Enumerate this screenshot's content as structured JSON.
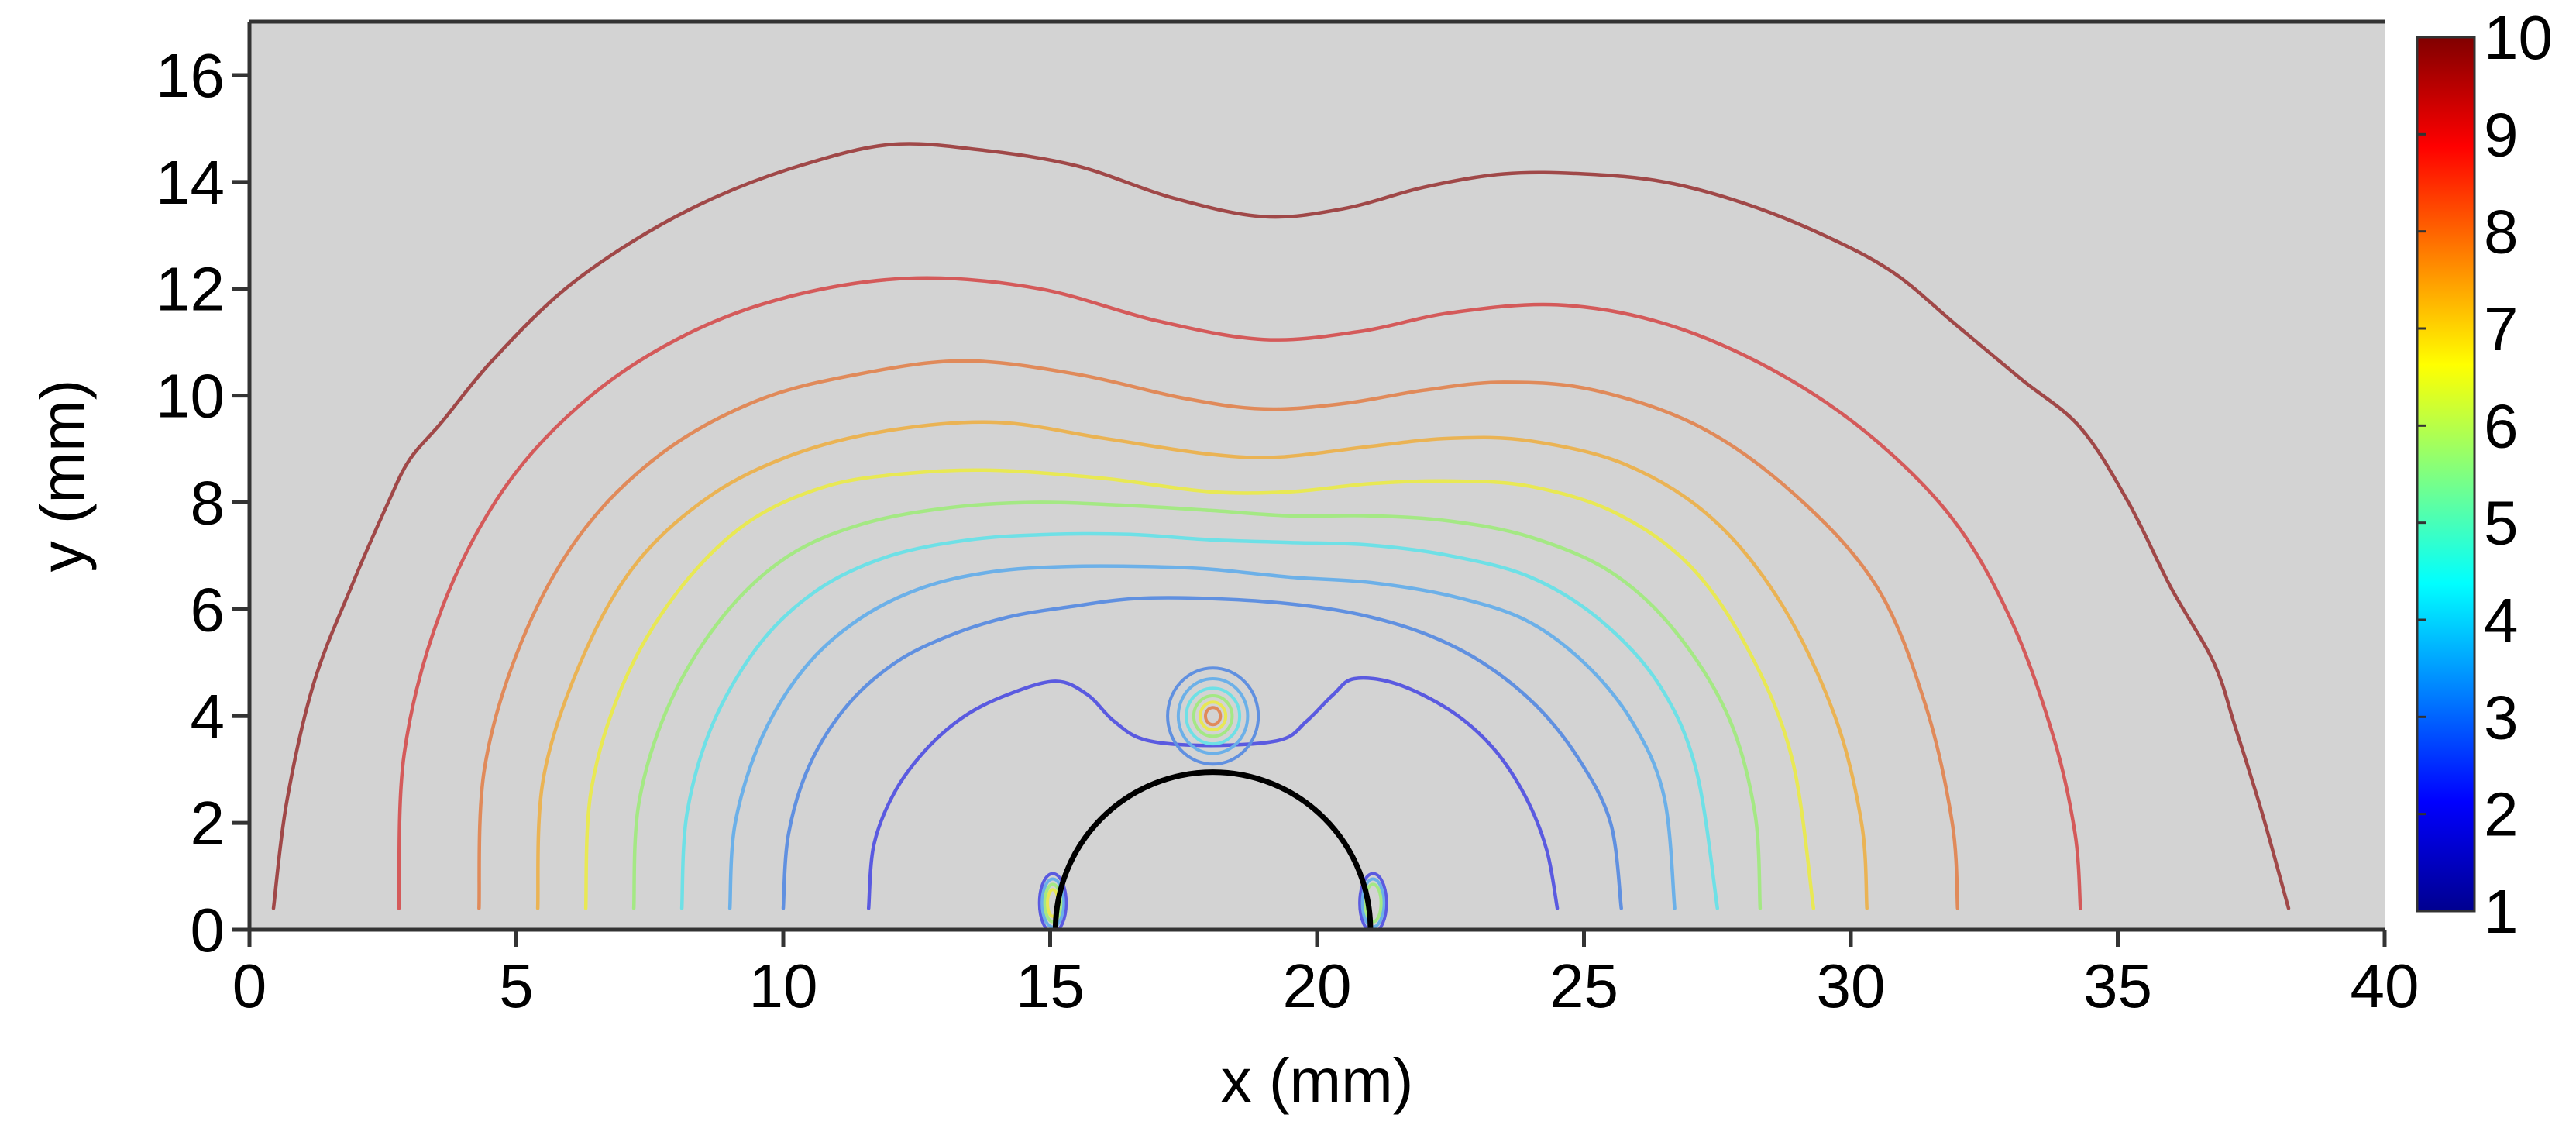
{
  "chart_data": {
    "type": "line",
    "subtype": "contour",
    "title": "",
    "xlabel": "x (mm)",
    "ylabel": "y (mm)",
    "xlim": [
      0,
      40
    ],
    "ylim": [
      0,
      17
    ],
    "xticks": [
      0,
      5,
      10,
      15,
      20,
      25,
      30,
      35,
      40
    ],
    "yticks": [
      0,
      2,
      4,
      6,
      8,
      10,
      12,
      14,
      16
    ],
    "grid": false,
    "background": "#d3d3d3",
    "colorbar": {
      "position": "right",
      "range": [
        1,
        10
      ],
      "ticks": [
        1,
        2,
        3,
        4,
        5,
        6,
        7,
        8,
        9,
        10
      ],
      "colormap": [
        "#00008f",
        "#0000ff",
        "#0080ff",
        "#00ffff",
        "#80ff80",
        "#ffff00",
        "#ff8000",
        "#ff0000",
        "#800000"
      ]
    },
    "obstacle": {
      "shape": "semicircle",
      "center": [
        18.05,
        0
      ],
      "radius": 2.95,
      "color": "#000000"
    },
    "series": [
      {
        "level": 3.0,
        "color": "#5a5ae0",
        "values": [
          [
            11.6,
            0.4
          ],
          [
            11.7,
            1.6
          ],
          [
            12.1,
            2.6
          ],
          [
            12.7,
            3.4
          ],
          [
            13.4,
            4.0
          ],
          [
            14.2,
            4.4
          ],
          [
            15.1,
            4.65
          ],
          [
            15.7,
            4.4
          ],
          [
            16.2,
            3.9
          ],
          [
            16.8,
            3.55
          ],
          [
            18.0,
            3.45
          ],
          [
            19.3,
            3.55
          ],
          [
            19.8,
            3.9
          ],
          [
            20.3,
            4.4
          ],
          [
            20.7,
            4.7
          ],
          [
            21.5,
            4.6
          ],
          [
            22.5,
            4.1
          ],
          [
            23.3,
            3.4
          ],
          [
            23.9,
            2.5
          ],
          [
            24.3,
            1.5
          ],
          [
            24.5,
            0.4
          ]
        ]
      },
      {
        "level": 3.6,
        "color": "#6090e0",
        "values": [
          [
            10.0,
            0.4
          ],
          [
            10.1,
            1.8
          ],
          [
            10.5,
            3.1
          ],
          [
            11.2,
            4.2
          ],
          [
            12.1,
            5.0
          ],
          [
            13.1,
            5.5
          ],
          [
            14.2,
            5.85
          ],
          [
            15.4,
            6.05
          ],
          [
            16.6,
            6.2
          ],
          [
            18.0,
            6.2
          ],
          [
            19.5,
            6.1
          ],
          [
            20.8,
            5.9
          ],
          [
            22.0,
            5.55
          ],
          [
            23.1,
            5.0
          ],
          [
            24.1,
            4.2
          ],
          [
            24.9,
            3.2
          ],
          [
            25.5,
            2.0
          ],
          [
            25.7,
            0.4
          ]
        ]
      },
      {
        "level": 4.1,
        "color": "#6cb0e8",
        "values": [
          [
            9.0,
            0.4
          ],
          [
            9.1,
            2.0
          ],
          [
            9.6,
            3.6
          ],
          [
            10.4,
            4.9
          ],
          [
            11.4,
            5.8
          ],
          [
            12.6,
            6.4
          ],
          [
            13.9,
            6.7
          ],
          [
            15.3,
            6.8
          ],
          [
            16.8,
            6.8
          ],
          [
            18.0,
            6.75
          ],
          [
            19.5,
            6.6
          ],
          [
            21.0,
            6.5
          ],
          [
            22.5,
            6.25
          ],
          [
            23.9,
            5.8
          ],
          [
            25.0,
            5.0
          ],
          [
            25.9,
            3.9
          ],
          [
            26.5,
            2.5
          ],
          [
            26.7,
            0.4
          ]
        ]
      },
      {
        "level": 4.7,
        "color": "#6ee0e6",
        "values": [
          [
            8.1,
            0.4
          ],
          [
            8.2,
            2.2
          ],
          [
            8.7,
            3.9
          ],
          [
            9.6,
            5.4
          ],
          [
            10.7,
            6.4
          ],
          [
            12.0,
            7.0
          ],
          [
            13.5,
            7.3
          ],
          [
            15.0,
            7.4
          ],
          [
            16.5,
            7.4
          ],
          [
            18.0,
            7.3
          ],
          [
            19.5,
            7.25
          ],
          [
            21.0,
            7.2
          ],
          [
            22.5,
            7.0
          ],
          [
            24.0,
            6.6
          ],
          [
            25.3,
            5.8
          ],
          [
            26.4,
            4.6
          ],
          [
            27.1,
            3.0
          ],
          [
            27.5,
            0.4
          ]
        ]
      },
      {
        "level": 5.3,
        "color": "#a4e884",
        "values": [
          [
            7.2,
            0.4
          ],
          [
            7.3,
            2.4
          ],
          [
            7.9,
            4.3
          ],
          [
            8.9,
            5.9
          ],
          [
            10.1,
            7.0
          ],
          [
            11.5,
            7.6
          ],
          [
            13.1,
            7.9
          ],
          [
            14.7,
            8.0
          ],
          [
            16.3,
            7.95
          ],
          [
            18.0,
            7.85
          ],
          [
            19.5,
            7.75
          ],
          [
            21.0,
            7.75
          ],
          [
            22.5,
            7.65
          ],
          [
            24.0,
            7.35
          ],
          [
            25.5,
            6.7
          ],
          [
            26.7,
            5.6
          ],
          [
            27.7,
            4.0
          ],
          [
            28.2,
            2.2
          ],
          [
            28.3,
            0.4
          ]
        ]
      },
      {
        "level": 6.0,
        "color": "#e8e854",
        "values": [
          [
            6.3,
            0.4
          ],
          [
            6.4,
            2.6
          ],
          [
            7.0,
            4.6
          ],
          [
            8.0,
            6.3
          ],
          [
            9.3,
            7.6
          ],
          [
            10.8,
            8.3
          ],
          [
            12.4,
            8.55
          ],
          [
            14.0,
            8.6
          ],
          [
            16.0,
            8.45
          ],
          [
            18.0,
            8.2
          ],
          [
            19.5,
            8.2
          ],
          [
            21.0,
            8.35
          ],
          [
            22.5,
            8.4
          ],
          [
            24.0,
            8.3
          ],
          [
            25.6,
            7.8
          ],
          [
            27.0,
            6.8
          ],
          [
            28.1,
            5.2
          ],
          [
            28.9,
            3.2
          ],
          [
            29.3,
            0.4
          ]
        ]
      },
      {
        "level": 6.8,
        "color": "#eab354",
        "values": [
          [
            5.4,
            0.4
          ],
          [
            5.5,
            2.8
          ],
          [
            6.2,
            5.0
          ],
          [
            7.2,
            6.8
          ],
          [
            8.6,
            8.1
          ],
          [
            10.2,
            8.9
          ],
          [
            12.0,
            9.35
          ],
          [
            14.0,
            9.5
          ],
          [
            16.0,
            9.2
          ],
          [
            18.0,
            8.9
          ],
          [
            19.3,
            8.85
          ],
          [
            21.0,
            9.05
          ],
          [
            22.5,
            9.2
          ],
          [
            24.0,
            9.15
          ],
          [
            25.8,
            8.7
          ],
          [
            27.4,
            7.7
          ],
          [
            28.7,
            6.1
          ],
          [
            29.7,
            4.0
          ],
          [
            30.2,
            2.0
          ],
          [
            30.3,
            0.4
          ]
        ]
      },
      {
        "level": 7.8,
        "color": "#e08a5a",
        "values": [
          [
            4.3,
            0.4
          ],
          [
            4.4,
            3.0
          ],
          [
            5.1,
            5.4
          ],
          [
            6.2,
            7.4
          ],
          [
            7.7,
            8.9
          ],
          [
            9.5,
            9.9
          ],
          [
            11.4,
            10.4
          ],
          [
            13.4,
            10.65
          ],
          [
            15.5,
            10.4
          ],
          [
            17.5,
            9.95
          ],
          [
            19.0,
            9.75
          ],
          [
            20.5,
            9.85
          ],
          [
            22.0,
            10.1
          ],
          [
            23.5,
            10.25
          ],
          [
            25.2,
            10.1
          ],
          [
            27.2,
            9.4
          ],
          [
            29.0,
            8.1
          ],
          [
            30.5,
            6.4
          ],
          [
            31.4,
            4.2
          ],
          [
            31.9,
            2.0
          ],
          [
            32.0,
            0.4
          ]
        ]
      },
      {
        "level": 8.6,
        "color": "#d45a5a",
        "values": [
          [
            2.8,
            0.4
          ],
          [
            2.9,
            3.3
          ],
          [
            3.6,
            6.0
          ],
          [
            4.8,
            8.3
          ],
          [
            6.4,
            10.0
          ],
          [
            8.3,
            11.2
          ],
          [
            10.3,
            11.9
          ],
          [
            12.5,
            12.2
          ],
          [
            14.8,
            12.0
          ],
          [
            17.0,
            11.4
          ],
          [
            19.0,
            11.05
          ],
          [
            20.8,
            11.2
          ],
          [
            22.5,
            11.55
          ],
          [
            24.5,
            11.7
          ],
          [
            26.5,
            11.35
          ],
          [
            28.5,
            10.5
          ],
          [
            30.3,
            9.3
          ],
          [
            31.9,
            7.7
          ],
          [
            33.0,
            5.8
          ],
          [
            33.8,
            3.6
          ],
          [
            34.2,
            1.8
          ],
          [
            34.3,
            0.4
          ]
        ]
      },
      {
        "level": 9.6,
        "color": "#a04848",
        "values": [
          [
            0.45,
            0.4
          ],
          [
            0.7,
            2.4
          ],
          [
            1.2,
            4.6
          ],
          [
            1.9,
            6.4
          ],
          [
            2.6,
            8.0
          ],
          [
            3.0,
            8.8
          ],
          [
            3.6,
            9.5
          ],
          [
            4.5,
            10.6
          ],
          [
            5.8,
            11.9
          ],
          [
            7.2,
            12.9
          ],
          [
            8.7,
            13.7
          ],
          [
            10.3,
            14.3
          ],
          [
            12.0,
            14.7
          ],
          [
            13.7,
            14.6
          ],
          [
            15.5,
            14.3
          ],
          [
            17.3,
            13.7
          ],
          [
            19.0,
            13.35
          ],
          [
            20.5,
            13.5
          ],
          [
            22.0,
            13.9
          ],
          [
            23.5,
            14.15
          ],
          [
            25.0,
            14.15
          ],
          [
            26.5,
            14.0
          ],
          [
            28.0,
            13.6
          ],
          [
            29.5,
            13.0
          ],
          [
            30.8,
            12.3
          ],
          [
            32.0,
            11.3
          ],
          [
            33.2,
            10.3
          ],
          [
            34.3,
            9.4
          ],
          [
            35.2,
            8.0
          ],
          [
            36.0,
            6.4
          ],
          [
            36.8,
            5.0
          ],
          [
            37.2,
            3.8
          ],
          [
            37.7,
            2.2
          ],
          [
            38.2,
            0.4
          ]
        ]
      }
    ],
    "source_blob": {
      "center": [
        18.05,
        4.0
      ],
      "rings": [
        {
          "rx": 0.85,
          "ry": 0.9,
          "color": "#6090e0"
        },
        {
          "rx": 0.65,
          "ry": 0.7,
          "color": "#6cb0e8"
        },
        {
          "rx": 0.5,
          "ry": 0.52,
          "color": "#6ee0e6"
        },
        {
          "rx": 0.36,
          "ry": 0.38,
          "color": "#a4e884"
        },
        {
          "rx": 0.24,
          "ry": 0.26,
          "color": "#e8e854"
        },
        {
          "rx": 0.14,
          "ry": 0.16,
          "color": "#e08a5a"
        }
      ]
    },
    "edge_blobs": [
      {
        "center": [
          15.05,
          0.5
        ],
        "colors": [
          "#5a5ae0",
          "#6cb0e8",
          "#a4e884",
          "#e8e854"
        ]
      },
      {
        "center": [
          21.05,
          0.5
        ],
        "colors": [
          "#5a5ae0",
          "#6cb0e8",
          "#a4e884"
        ]
      }
    ]
  }
}
